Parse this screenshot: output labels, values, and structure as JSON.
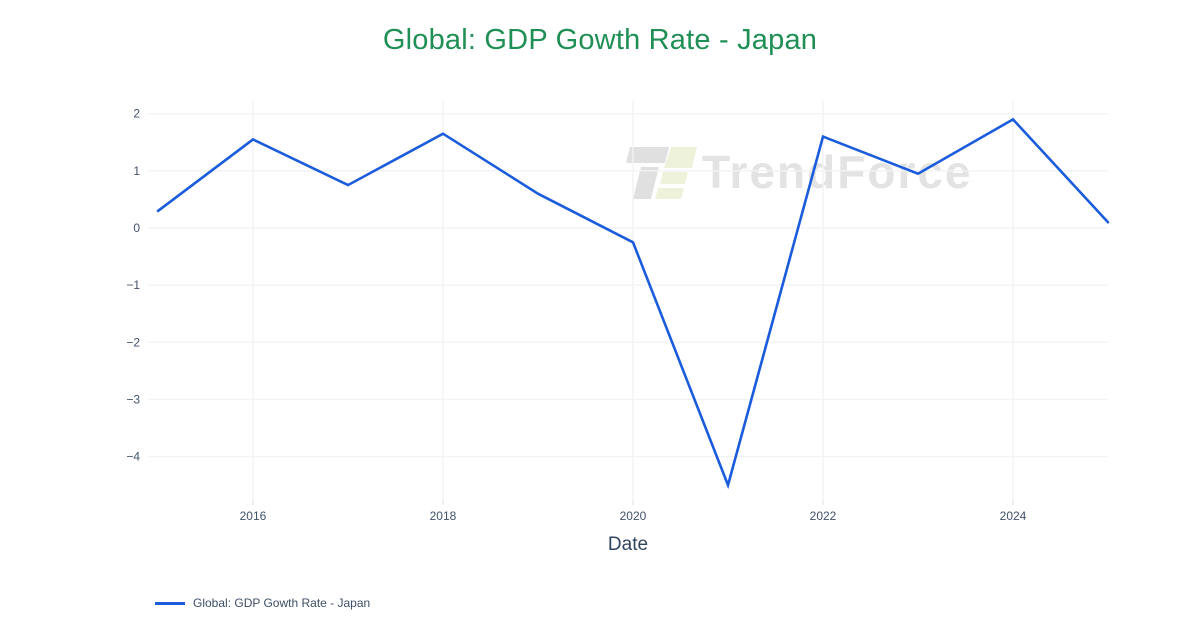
{
  "chart_data": {
    "type": "line",
    "title": "Global: GDP Gowth Rate - Japan",
    "xlabel": "Date",
    "ylabel": "",
    "series": [
      {
        "name": "Global: GDP Gowth Rate - Japan",
        "x": [
          2015,
          2016,
          2017,
          2018,
          2019,
          2020,
          2021,
          2022,
          2023,
          2024,
          2025
        ],
        "values": [
          0.3,
          1.55,
          0.75,
          1.65,
          0.6,
          -0.25,
          -4.5,
          1.6,
          0.95,
          1.9,
          0.1
        ]
      }
    ],
    "x_ticks": [
      2016,
      2018,
      2020,
      2022,
      2024
    ],
    "y_ticks": [
      2,
      1,
      0,
      -1,
      -2,
      -3,
      -4
    ],
    "x_range": [
      2014.895,
      2025.0
    ],
    "y_range": [
      -4.76,
      2.24
    ],
    "grid": true,
    "legend_position": "bottom-left"
  },
  "legend": {
    "label": "Global: GDP Gowth Rate - Japan"
  },
  "watermark": {
    "text": "TrendForce",
    "logo": "trendforce-logo"
  },
  "colors": {
    "title": "#1f8f55",
    "line": "#1a5cdc",
    "tick_label": "#42526b",
    "axis_title": "#32455f",
    "grid": "#f2f3f6",
    "tick_mark": "#e7e9ef",
    "legend_text": "#3e4f68",
    "watermark_text": "#e3e3e3",
    "wm_gray": "#e0e0e0",
    "wm_green": "#eef2da",
    "background": "#ffffff"
  }
}
